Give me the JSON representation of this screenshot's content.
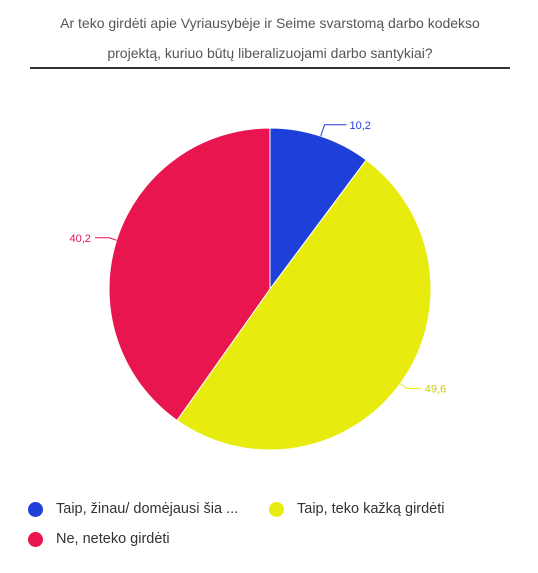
{
  "chart_data": {
    "type": "pie",
    "title": "Ar teko girdėti apie Vyriausybėje ir Seime svarstomą darbo kodekso projektą, kuriuo būtų liberalizuojami darbo santykiai?",
    "title_lines": [
      "Ar teko girdėti apie Vyriausybėje ir Seime svarstomą darbo kodekso",
      "projektą, kuriuo būtų liberalizuojami darbo santykiai?"
    ],
    "slices": [
      {
        "label": "Taip, žinau/ domėjausi šia ...",
        "value": 10.2,
        "value_label": "10,2",
        "color": "#1f3fd9"
      },
      {
        "label": "Taip, teko kažką girdėti",
        "value": 49.6,
        "value_label": "49,6",
        "color": "#e8ec0e"
      },
      {
        "label": "Ne, neteko girdėti",
        "value": 40.2,
        "value_label": "40,2",
        "color": "#e8154f"
      }
    ],
    "legend_position": "bottom"
  }
}
